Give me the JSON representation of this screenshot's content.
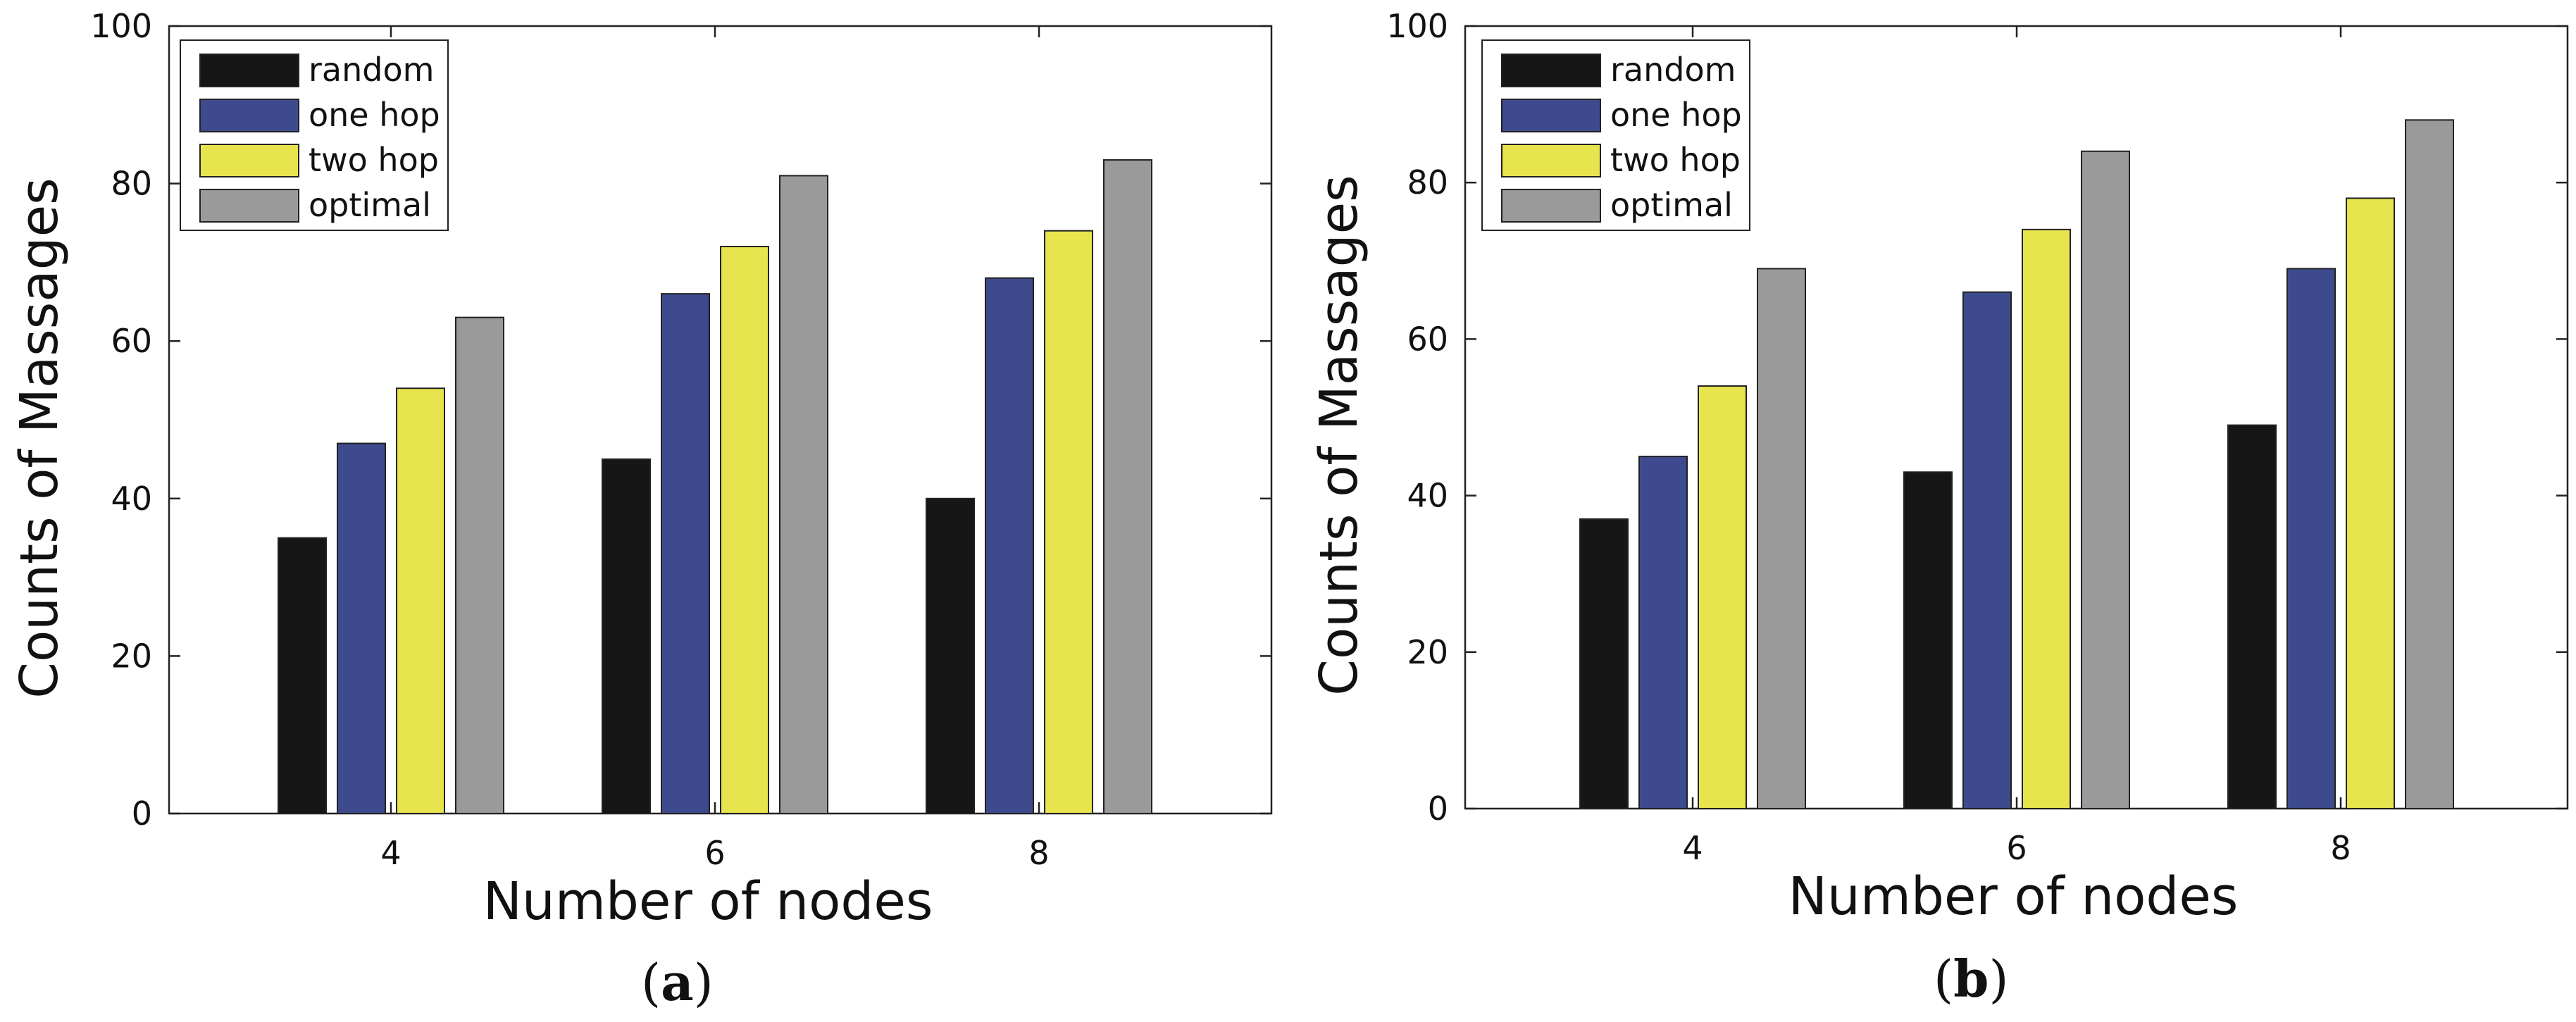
{
  "chart_data": [
    {
      "type": "bar",
      "panel": "a",
      "caption_open": "(",
      "caption_letter": "a",
      "caption_close": ")",
      "title": "",
      "xlabel": "Number of nodes",
      "ylabel": "Counts of Massages",
      "categories": [
        "4",
        "6",
        "8"
      ],
      "ylim": [
        0,
        100
      ],
      "yticks": [
        "0",
        "20",
        "40",
        "60",
        "80",
        "100"
      ],
      "legend_position": "top-left",
      "series": [
        {
          "name": "random",
          "color": "#161616",
          "values": [
            35,
            45,
            40
          ]
        },
        {
          "name": "one hop",
          "color": "#3d4b8e",
          "values": [
            47,
            66,
            68
          ]
        },
        {
          "name": "two hop",
          "color": "#e8e44e",
          "values": [
            54,
            72,
            74
          ]
        },
        {
          "name": "optimal",
          "color": "#9a9a9a",
          "values": [
            63,
            81,
            83
          ]
        }
      ]
    },
    {
      "type": "bar",
      "panel": "b",
      "caption_open": "(",
      "caption_letter": "b",
      "caption_close": ")",
      "title": "",
      "xlabel": "Number of nodes",
      "ylabel": "Counts of Massages",
      "categories": [
        "4",
        "6",
        "8"
      ],
      "ylim": [
        0,
        100
      ],
      "yticks": [
        "0",
        "20",
        "40",
        "60",
        "80",
        "100"
      ],
      "legend_position": "top-left",
      "series": [
        {
          "name": "random",
          "color": "#161616",
          "values": [
            37,
            43,
            49
          ]
        },
        {
          "name": "one hop",
          "color": "#3d4b8e",
          "values": [
            45,
            66,
            69
          ]
        },
        {
          "name": "two hop",
          "color": "#e8e44e",
          "values": [
            54,
            74,
            78
          ]
        },
        {
          "name": "optimal",
          "color": "#9a9a9a",
          "values": [
            69,
            84,
            88
          ]
        }
      ]
    }
  ]
}
